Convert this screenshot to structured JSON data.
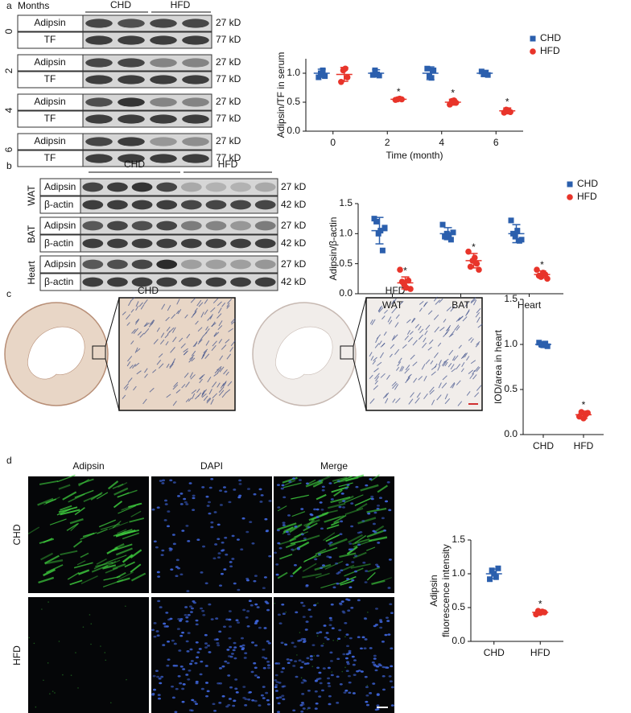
{
  "panel_labels": [
    "a",
    "b",
    "c",
    "d"
  ],
  "blot_a": {
    "header": "Months",
    "groups": [
      "CHD",
      "HFD"
    ],
    "rows": [
      {
        "time": "0",
        "bands": [
          {
            "name": "Adipsin",
            "size": "27 kD"
          },
          {
            "name": "TF",
            "size": "77 kD"
          }
        ]
      },
      {
        "time": "2",
        "bands": [
          {
            "name": "Adipsin",
            "size": "27 kD"
          },
          {
            "name": "TF",
            "size": "77 kD"
          }
        ]
      },
      {
        "time": "4",
        "bands": [
          {
            "name": "Adipsin",
            "size": "27 kD"
          },
          {
            "name": "TF",
            "size": "77 kD"
          }
        ]
      },
      {
        "time": "6",
        "bands": [
          {
            "name": "Adipsin",
            "size": "27 kD"
          },
          {
            "name": "TF",
            "size": "77 kD"
          }
        ]
      }
    ]
  },
  "blot_b": {
    "groups": [
      "CHD",
      "HFD"
    ],
    "rows": [
      {
        "tissue": "WAT",
        "bands": [
          {
            "name": "Adipsin",
            "size": "27 kD"
          },
          {
            "name": "β-actin",
            "size": "42 kD"
          }
        ]
      },
      {
        "tissue": "BAT",
        "bands": [
          {
            "name": "Adipsin",
            "size": "27 kD"
          },
          {
            "name": "β-actin",
            "size": "42 kD"
          }
        ]
      },
      {
        "tissue": "Heart",
        "bands": [
          {
            "name": "Adipsin",
            "size": "27 kD"
          },
          {
            "name": "β-actin",
            "size": "42 kD"
          }
        ]
      }
    ]
  },
  "histology_c": {
    "labels": [
      "CHD",
      "HFD"
    ]
  },
  "fluorescence_d": {
    "channels": [
      "Adipsin",
      "DAPI",
      "Merge"
    ],
    "groups": [
      "CHD",
      "HFD"
    ]
  },
  "chart_data": [
    {
      "type": "dot",
      "ylabel": "Adipsin/TF in serum",
      "xlabel": "Time (month)",
      "categories": [
        "0",
        "2",
        "4",
        "6"
      ],
      "ylim": [
        0,
        1.25
      ],
      "yticks": [
        {
          "value": 0,
          "label": "0.0"
        },
        {
          "value": 0.5,
          "label": "0.5"
        },
        {
          "value": 1,
          "label": "1.0"
        }
      ],
      "legend": "top-right",
      "significance_label": "*",
      "series": [
        {
          "name": "CHD",
          "color": "#2b5fad",
          "marker": "square",
          "values": [
            1.0,
            1.0,
            1.0,
            1.0
          ],
          "errors": [
            0.07,
            0.06,
            0.11,
            0.05
          ],
          "points": [
            [
              0.93,
              1.0,
              1.05,
              0.95
            ],
            [
              0.97,
              1.05,
              0.98,
              0.96
            ],
            [
              1.08,
              0.95,
              0.92,
              1.05
            ],
            [
              1.03,
              0.98,
              1.0,
              0.97
            ]
          ],
          "significant": [
            false,
            false,
            false,
            false
          ]
        },
        {
          "name": "HFD",
          "color": "#e8342a",
          "marker": "circle",
          "values": [
            0.98,
            0.55,
            0.5,
            0.35
          ],
          "errors": [
            0.12,
            0.02,
            0.05,
            0.05
          ],
          "points": [
            [
              0.85,
              1.05,
              1.08,
              0.93
            ],
            [
              0.54,
              0.55,
              0.56,
              0.55
            ],
            [
              0.46,
              0.52,
              0.53,
              0.49
            ],
            [
              0.32,
              0.37,
              0.36,
              0.33
            ]
          ],
          "significant": [
            false,
            true,
            true,
            true
          ]
        }
      ]
    },
    {
      "type": "dot",
      "ylabel": "Adipsin/β-actin",
      "categories": [
        "WAT",
        "BAT",
        "Heart"
      ],
      "ylim": [
        0,
        1.5
      ],
      "yticks": [
        {
          "value": 0,
          "label": "0.0"
        },
        {
          "value": 0.5,
          "label": "0.5"
        },
        {
          "value": 1,
          "label": "1.0"
        },
        {
          "value": 1.5,
          "label": "1.5"
        }
      ],
      "legend": "top-right",
      "significance_label": "*",
      "series": [
        {
          "name": "CHD",
          "color": "#2b5fad",
          "marker": "square",
          "values": [
            1.05,
            1.0,
            1.0
          ],
          "errors": [
            0.22,
            0.1,
            0.15
          ],
          "points": [
            [
              1.25,
              1.2,
              1.0,
              1.05,
              0.72,
              1.1
            ],
            [
              1.15,
              0.95,
              1.0,
              0.98,
              0.9,
              1.02
            ],
            [
              1.22,
              1.0,
              0.95,
              1.05,
              0.88,
              0.9
            ]
          ],
          "significant": [
            false,
            false,
            false
          ]
        },
        {
          "name": "HFD",
          "color": "#e8342a",
          "marker": "circle",
          "values": [
            0.18,
            0.55,
            0.32
          ],
          "errors": [
            0.1,
            0.12,
            0.06
          ],
          "points": [
            [
              0.4,
              0.2,
              0.15,
              0.1,
              0.22,
              0.08
            ],
            [
              0.7,
              0.45,
              0.55,
              0.6,
              0.5,
              0.4
            ],
            [
              0.4,
              0.3,
              0.28,
              0.35,
              0.32,
              0.25
            ]
          ],
          "significant": [
            true,
            true,
            true
          ]
        }
      ]
    },
    {
      "type": "dot",
      "ylabel": "IOD/area in heart",
      "categories": [
        "CHD",
        "HFD"
      ],
      "ylim": [
        0,
        1.5
      ],
      "yticks": [
        {
          "value": 0,
          "label": "0.0"
        },
        {
          "value": 0.5,
          "label": "0.5"
        },
        {
          "value": 1,
          "label": "1.0"
        },
        {
          "value": 1.5,
          "label": "1.5"
        }
      ],
      "significance_label": "*",
      "series": [
        {
          "color": "#2b5fad",
          "marker": "square",
          "values": [
            1.0,
            null
          ],
          "errors": [
            0.03,
            null
          ],
          "points": [
            [
              1.02,
              1.0,
              0.99,
              1.01,
              0.98
            ],
            null
          ],
          "significant": [
            false,
            false
          ]
        },
        {
          "color": "#e8342a",
          "marker": "circle",
          "values": [
            null,
            0.22
          ],
          "errors": [
            null,
            0.04
          ],
          "points": [
            null,
            [
              0.2,
              0.25,
              0.18,
              0.22,
              0.24
            ]
          ],
          "significant": [
            false,
            true
          ]
        }
      ]
    },
    {
      "type": "dot",
      "ylabel": [
        "Adipsin",
        "fluorescence intensity"
      ],
      "categories": [
        "CHD",
        "HFD"
      ],
      "ylim": [
        0,
        1.5
      ],
      "yticks": [
        {
          "value": 0,
          "label": "0.0"
        },
        {
          "value": 0.5,
          "label": "0.5"
        },
        {
          "value": 1,
          "label": "1.0"
        },
        {
          "value": 1.5,
          "label": "1.5"
        }
      ],
      "significance_label": "*",
      "series": [
        {
          "color": "#2b5fad",
          "marker": "square",
          "values": [
            1.0,
            null
          ],
          "errors": [
            0.07,
            null
          ],
          "points": [
            [
              0.92,
              1.05,
              1.0,
              0.95,
              1.08
            ],
            null
          ],
          "significant": [
            false,
            false
          ]
        },
        {
          "color": "#e8342a",
          "marker": "circle",
          "values": [
            null,
            0.43
          ],
          "errors": [
            null,
            0.03
          ],
          "points": [
            null,
            [
              0.4,
              0.45,
              0.42,
              0.44,
              0.43
            ]
          ],
          "significant": [
            false,
            true
          ]
        }
      ]
    }
  ]
}
